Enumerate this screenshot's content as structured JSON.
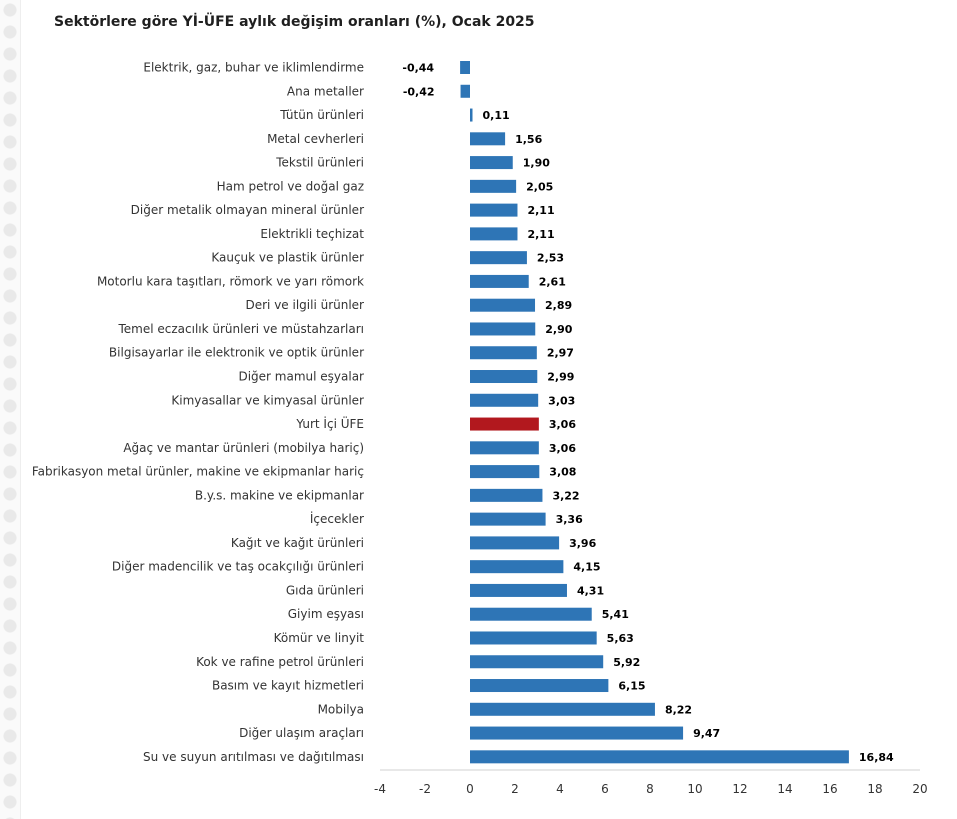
{
  "chart_data": {
    "type": "bar",
    "orientation": "horizontal",
    "title": "Sektörlere göre Yİ-ÜFE aylık değişim oranları (%), Ocak 2025",
    "xlim": [
      -4,
      20
    ],
    "xticks": [
      -4,
      -2,
      0,
      2,
      4,
      6,
      8,
      10,
      12,
      14,
      16,
      18,
      20
    ],
    "grid": false,
    "bar_color": "#2E75B6",
    "highlight_color": "#B2181E",
    "highlight_category": "Yurt İçi ÜFE",
    "categories": [
      "Elektrik, gaz, buhar ve iklimlendirme",
      "Ana metaller",
      "Tütün ürünleri",
      "Metal cevherleri",
      "Tekstil ürünleri",
      "Ham petrol ve doğal gaz",
      "Diğer metalik olmayan mineral ürünler",
      "Elektrikli teçhizat",
      "Kauçuk ve plastik ürünler",
      "Motorlu kara taşıtları, römork ve yarı römork",
      "Deri ve ilgili ürünler",
      "Temel eczacılık ürünleri ve müstahzarları",
      "Bilgisayarlar ile elektronik ve optik ürünler",
      "Diğer mamul eşyalar",
      "Kimyasallar ve kimyasal ürünler",
      "Yurt İçi ÜFE",
      "Ağaç ve mantar ürünleri (mobilya hariç)",
      "Fabrikasyon metal ürünler, makine ve ekipmanlar hariç",
      "B.y.s. makine ve ekipmanlar",
      "İçecekler",
      "Kağıt ve kağıt ürünleri",
      "Diğer madencilik ve taş ocakçılığı ürünleri",
      "Gıda ürünleri",
      "Giyim eşyası",
      "Kömür ve linyit",
      "Kok ve rafine petrol ürünleri",
      "Basım ve kayıt hizmetleri",
      "Mobilya",
      "Diğer ulaşım araçları",
      "Su ve suyun arıtılması ve dağıtılması"
    ],
    "values": [
      -0.44,
      -0.42,
      0.11,
      1.56,
      1.9,
      2.05,
      2.11,
      2.11,
      2.53,
      2.61,
      2.89,
      2.9,
      2.97,
      2.99,
      3.03,
      3.06,
      3.06,
      3.08,
      3.22,
      3.36,
      3.96,
      4.15,
      4.31,
      5.41,
      5.63,
      5.92,
      6.15,
      8.22,
      9.47,
      16.84
    ],
    "value_labels": [
      "-0,44",
      "-0,42",
      "0,11",
      "1,56",
      "1,90",
      "2,05",
      "2,11",
      "2,11",
      "2,53",
      "2,61",
      "2,89",
      "2,90",
      "2,97",
      "2,99",
      "3,03",
      "3,06",
      "3,06",
      "3,08",
      "3,22",
      "3,36",
      "3,96",
      "4,15",
      "4,31",
      "5,41",
      "5,63",
      "5,92",
      "6,15",
      "8,22",
      "9,47",
      "16,84"
    ]
  }
}
